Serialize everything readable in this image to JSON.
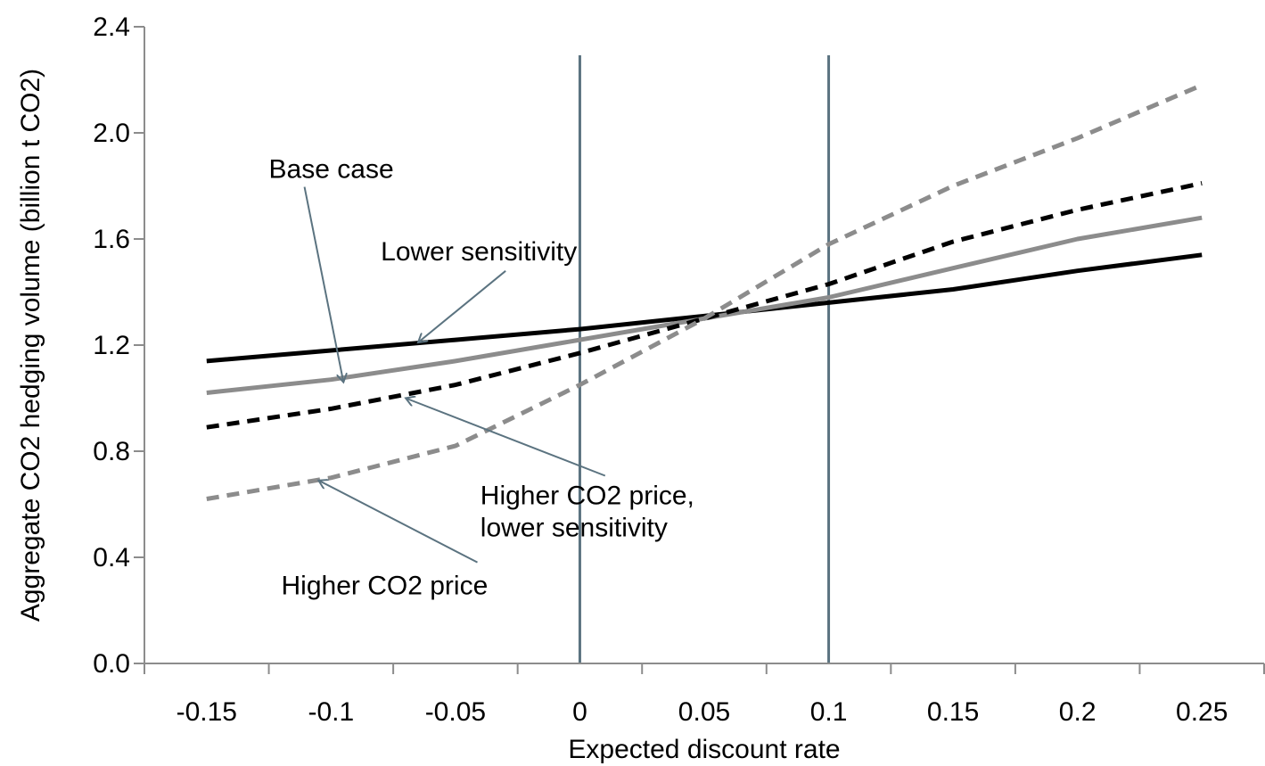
{
  "chart_data": {
    "type": "line",
    "title": "",
    "xlabel": "Expected discount rate",
    "ylabel": "Aggregate CO2 hedging volume (billion t CO2)",
    "xlim": [
      -0.175,
      0.275
    ],
    "ylim": [
      0,
      2.4
    ],
    "x_ticks": [
      -0.15,
      -0.1,
      -0.05,
      0,
      0.05,
      0.1,
      0.15,
      0.2,
      0.25
    ],
    "x_tick_labels": [
      "-0.15",
      "-0.1",
      "-0.05",
      "0",
      "0.05",
      "0.1",
      "0.15",
      "0.2",
      "0.25"
    ],
    "y_ticks": [
      0,
      0.4,
      0.8,
      1.2,
      1.6,
      2.0,
      2.4
    ],
    "y_tick_labels": [
      "0.0",
      "0.4",
      "0.8",
      "1.2",
      "1.6",
      "2.0",
      "2.4"
    ],
    "grid": false,
    "legend": "none",
    "x": [
      -0.15,
      -0.1,
      -0.05,
      0,
      0.05,
      0.1,
      0.15,
      0.2,
      0.25
    ],
    "series": [
      {
        "name": "Lower sensitivity",
        "color": "#000000",
        "dash": "solid",
        "values": [
          1.14,
          1.18,
          1.22,
          1.26,
          1.31,
          1.36,
          1.41,
          1.48,
          1.54
        ]
      },
      {
        "name": "Base case",
        "color": "#8c8c8c",
        "dash": "solid",
        "values": [
          1.02,
          1.07,
          1.14,
          1.22,
          1.3,
          1.38,
          1.49,
          1.6,
          1.68
        ]
      },
      {
        "name": "Higher CO2 price, lower sensitivity",
        "color": "#000000",
        "dash": "dashed",
        "values": [
          0.89,
          0.96,
          1.05,
          1.17,
          1.3,
          1.43,
          1.59,
          1.71,
          1.81
        ]
      },
      {
        "name": "Higher CO2 price",
        "color": "#8c8c8c",
        "dash": "dashed",
        "values": [
          0.62,
          0.7,
          0.82,
          1.05,
          1.3,
          1.58,
          1.8,
          1.98,
          2.18
        ]
      }
    ],
    "vertical_lines": [
      0,
      0.1
    ],
    "vertical_line_color": "#5b7380",
    "annotations": [
      {
        "text": "Base case",
        "lines": [
          "Base case"
        ],
        "x": -0.125,
        "y": 1.83,
        "anchor": "start",
        "arrow_to": [
          -0.095,
          1.06
        ]
      },
      {
        "text": "Lower sensitivity",
        "lines": [
          "Lower sensitivity"
        ],
        "x": -0.08,
        "y": 1.52,
        "anchor": "start",
        "arrow_to": [
          -0.065,
          1.21
        ]
      },
      {
        "text": "Higher CO2 price, lower sensitivity",
        "lines": [
          "Higher CO2 price,",
          "lower sensitivity"
        ],
        "x": -0.04,
        "y": 0.6,
        "anchor": "start",
        "arrow_to": [
          -0.07,
          1.0
        ]
      },
      {
        "text": "Higher CO2 price",
        "lines": [
          "Higher CO2 price"
        ],
        "x": -0.12,
        "y": 0.26,
        "anchor": "start",
        "arrow_to": [
          -0.105,
          0.69
        ]
      }
    ],
    "annotation_arrow_color": "#5b7380"
  }
}
